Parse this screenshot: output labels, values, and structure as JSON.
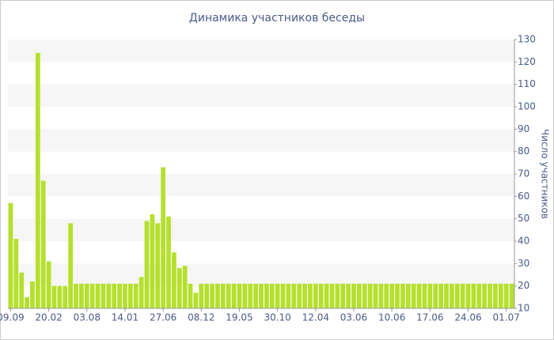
{
  "chart_data": {
    "type": "bar",
    "title": "Динамика участников беседы",
    "y_label": "Число участников",
    "categories": [
      "09.09",
      null,
      null,
      null,
      null,
      null,
      null,
      "20.02",
      null,
      null,
      null,
      null,
      null,
      null,
      "03.08",
      null,
      null,
      null,
      null,
      null,
      null,
      "14.01",
      null,
      null,
      null,
      null,
      null,
      null,
      "27.06",
      null,
      null,
      null,
      null,
      null,
      null,
      "08.12",
      null,
      null,
      null,
      null,
      null,
      null,
      "19.05",
      null,
      null,
      null,
      null,
      null,
      null,
      "30.10",
      null,
      null,
      null,
      null,
      null,
      null,
      "12.04",
      null,
      null,
      null,
      null,
      null,
      null,
      "03.06",
      null,
      null,
      null,
      null,
      null,
      null,
      "10.06",
      null,
      null,
      null,
      null,
      null,
      null,
      "17.06",
      null,
      null,
      null,
      null,
      null,
      null,
      "24.06",
      null,
      null,
      null,
      null,
      null,
      null,
      "01.07",
      null
    ],
    "values": [
      57,
      41,
      26,
      15,
      22,
      124,
      67,
      31,
      20,
      20,
      20,
      48,
      21,
      21,
      21,
      21,
      21,
      21,
      21,
      21,
      21,
      21,
      21,
      21,
      24,
      49,
      52,
      48,
      73,
      51,
      35,
      28,
      29,
      21,
      17,
      21,
      21,
      21,
      21,
      21,
      21,
      21,
      21,
      21,
      21,
      21,
      21,
      21,
      21,
      21,
      21,
      21,
      21,
      21,
      21,
      21,
      21,
      21,
      21,
      21,
      21,
      21,
      21,
      21,
      21,
      21,
      21,
      21,
      21,
      21,
      21,
      21,
      21,
      21,
      21,
      21,
      21,
      21,
      21,
      21,
      21,
      21,
      21,
      21,
      21,
      21,
      21,
      21,
      21,
      21,
      21,
      21,
      21
    ],
    "color": "#b5e02e",
    "ylim": [
      10,
      130
    ],
    "yticks": [
      10,
      20,
      30,
      40,
      50,
      60,
      70,
      80,
      90,
      100,
      110,
      120,
      130
    ],
    "y_axis_side": "right",
    "grid": true
  }
}
